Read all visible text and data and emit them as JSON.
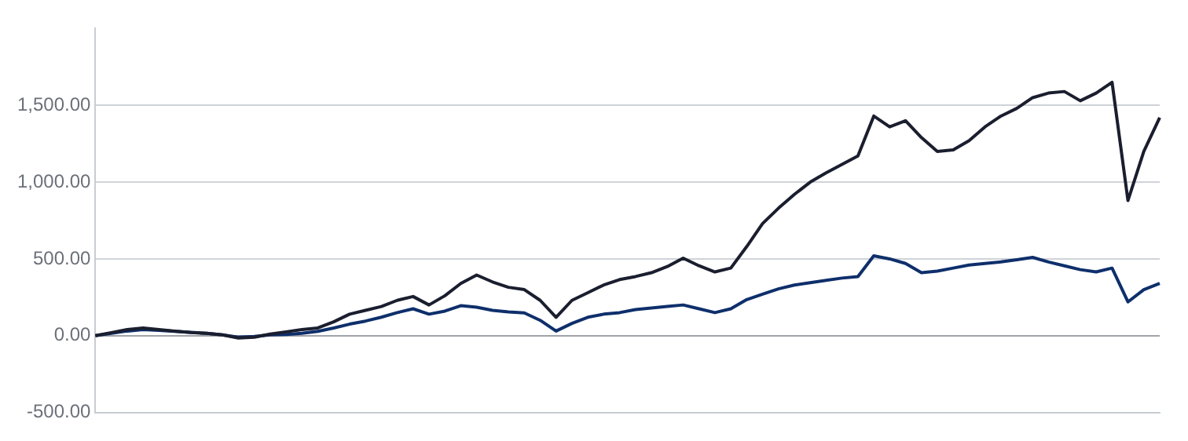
{
  "chart_data": {
    "type": "line",
    "categories": [
      null,
      null,
      null,
      null,
      null,
      null,
      null,
      null,
      null,
      null,
      null,
      null,
      null,
      null,
      null,
      null,
      null,
      null,
      null,
      null,
      null,
      null,
      null,
      null,
      null,
      null,
      null,
      null,
      null,
      null,
      null,
      null,
      null,
      null,
      null,
      null,
      null,
      null,
      null,
      null,
      null,
      null,
      null,
      null,
      null,
      null,
      null,
      null,
      null,
      null,
      null,
      null,
      null,
      null,
      null,
      null,
      null,
      null,
      null,
      null,
      null,
      null,
      null,
      null,
      null,
      null,
      null,
      null
    ],
    "series": [
      {
        "color": "#1a1e2e",
        "values": [
          0,
          20,
          40,
          50,
          40,
          30,
          20,
          15,
          5,
          -15,
          -10,
          10,
          25,
          40,
          50,
          90,
          140,
          165,
          190,
          230,
          255,
          200,
          260,
          340,
          395,
          350,
          315,
          300,
          230,
          120,
          230,
          280,
          330,
          365,
          385,
          410,
          450,
          505,
          455,
          415,
          440,
          580,
          730,
          830,
          920,
          1000,
          1060,
          1115,
          1170,
          1430,
          1360,
          1400,
          1290,
          1200,
          1210,
          1270,
          1360,
          1430,
          1480,
          1550,
          1580,
          1590,
          1530,
          1580,
          1650,
          880,
          1200,
          1420
        ]
      },
      {
        "color": "#0e2f6b",
        "values": [
          0,
          15,
          30,
          40,
          35,
          28,
          22,
          15,
          5,
          -10,
          -5,
          5,
          8,
          15,
          28,
          50,
          75,
          95,
          120,
          150,
          175,
          140,
          160,
          195,
          185,
          165,
          155,
          148,
          100,
          30,
          80,
          120,
          140,
          150,
          170,
          180,
          190,
          200,
          175,
          150,
          175,
          235,
          270,
          305,
          330,
          345,
          360,
          375,
          385,
          520,
          500,
          470,
          410,
          420,
          440,
          460,
          470,
          480,
          495,
          510,
          480,
          455,
          430,
          415,
          440,
          220,
          300,
          340
        ]
      }
    ],
    "ylim": [
      -500,
      2000
    ],
    "yticks": [
      {
        "value": -500,
        "label": "-500.00"
      },
      {
        "value": 0,
        "label": "0.00"
      },
      {
        "value": 500,
        "label": "500.00"
      },
      {
        "value": 1000,
        "label": "1,000.00"
      },
      {
        "value": 1500,
        "label": "1,500.00"
      }
    ],
    "grid": "y",
    "legend": false,
    "tick_labels": "y",
    "marker": "none",
    "line_style": "solid"
  }
}
